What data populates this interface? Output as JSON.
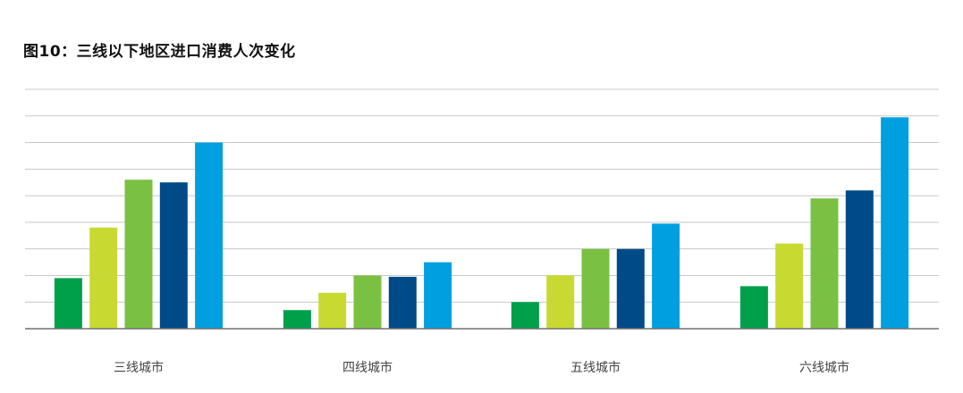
{
  "title": "图10：三线以下地区进口消费人次变化",
  "chart_data": {
    "type": "bar",
    "title": "图10：三线以下地区进口消费人次变化",
    "xlabel": "",
    "ylabel": "",
    "ylim": [
      0,
      9
    ],
    "grid": true,
    "gridlines": 9,
    "legend": "none",
    "categories": [
      "三线城市",
      "四线城市",
      "五线城市",
      "六线城市"
    ],
    "series": [
      {
        "color": "#00a04a",
        "values": [
          1.9,
          0.7,
          1.0,
          1.6
        ]
      },
      {
        "color": "#c8d932",
        "values": [
          3.8,
          1.35,
          2.0,
          3.2
        ]
      },
      {
        "color": "#7ac143",
        "values": [
          5.6,
          2.0,
          3.0,
          4.9
        ]
      },
      {
        "color": "#004b87",
        "values": [
          5.5,
          1.95,
          3.0,
          5.2
        ]
      },
      {
        "color": "#00a0e0",
        "values": [
          7.0,
          2.5,
          3.95,
          7.95
        ]
      }
    ]
  }
}
